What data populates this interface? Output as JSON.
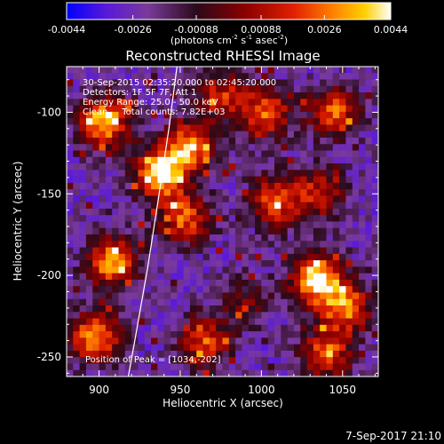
{
  "colorbar": {
    "ticks": [
      "-0.0044",
      "-0.0026",
      "-0.00088",
      "0.00088",
      "0.0026",
      "0.0044"
    ],
    "tick_values": [
      -0.0044,
      -0.0026,
      -0.00088,
      0.00088,
      0.0026,
      0.0044
    ],
    "range": [
      -0.0044,
      0.0044
    ],
    "units_main": "(photons cm",
    "units_sup1": "-2",
    "units_mid1": " s",
    "units_sup2": "-1",
    "units_mid2": " asec",
    "units_sup3": "-2",
    "units_end": ")",
    "colors": [
      "#0000ff",
      "#5a1ad8",
      "#7a3a9a",
      "#2a0a1a",
      "#8a0000",
      "#e02000",
      "#ff8000",
      "#ffd000",
      "#ffffff"
    ]
  },
  "chart_data": {
    "type": "heatmap",
    "title": "Reconstructed RHESSI Image",
    "xlabel": "Heliocentric X (arcsec)",
    "ylabel": "Heliocentric Y (arcsec)",
    "xlim": [
      880,
      1072
    ],
    "ylim": [
      -262,
      -72
    ],
    "xticks": [
      900,
      950,
      1000,
      1050
    ],
    "yticks": [
      -100,
      -150,
      -200,
      -250
    ],
    "annotations": [
      "30-Sep-2015 02:35:20.000 to 02:45:20.000",
      "Detectors: 1F 5F 7F, Att 1",
      "Energy Range: 25.0 - 50.0 keV",
      "Clean     Total counts: 7.82E+03"
    ],
    "peak_label": "Position of Peak = [1034,-202]",
    "peak": [
      1034,
      -202
    ],
    "sources": [
      {
        "x": 903,
        "y": -106,
        "amp": 1.0
      },
      {
        "x": 937,
        "y": -138,
        "amp": 1.0
      },
      {
        "x": 908,
        "y": -192,
        "amp": 0.9
      },
      {
        "x": 898,
        "y": -238,
        "amp": 0.9
      },
      {
        "x": 955,
        "y": -122,
        "amp": 0.85
      },
      {
        "x": 975,
        "y": -90,
        "amp": 0.6
      },
      {
        "x": 1003,
        "y": -100,
        "amp": 0.75
      },
      {
        "x": 1045,
        "y": -100,
        "amp": 0.75
      },
      {
        "x": 953,
        "y": -165,
        "amp": 0.75
      },
      {
        "x": 1008,
        "y": -155,
        "amp": 0.75
      },
      {
        "x": 1035,
        "y": -150,
        "amp": 0.6
      },
      {
        "x": 1034,
        "y": -202,
        "amp": 1.1
      },
      {
        "x": 1052,
        "y": -220,
        "amp": 0.8
      },
      {
        "x": 1040,
        "y": -248,
        "amp": 0.75
      },
      {
        "x": 965,
        "y": -240,
        "amp": 0.7
      },
      {
        "x": 990,
        "y": -215,
        "amp": 0.35
      }
    ],
    "limb": [
      [
        948,
        -72
      ],
      [
        943,
        -110
      ],
      [
        937,
        -150
      ],
      [
        930,
        -195
      ],
      [
        922,
        -240
      ],
      [
        918,
        -262
      ]
    ]
  },
  "footer": {
    "date": "7-Sep-2017 21:10"
  }
}
